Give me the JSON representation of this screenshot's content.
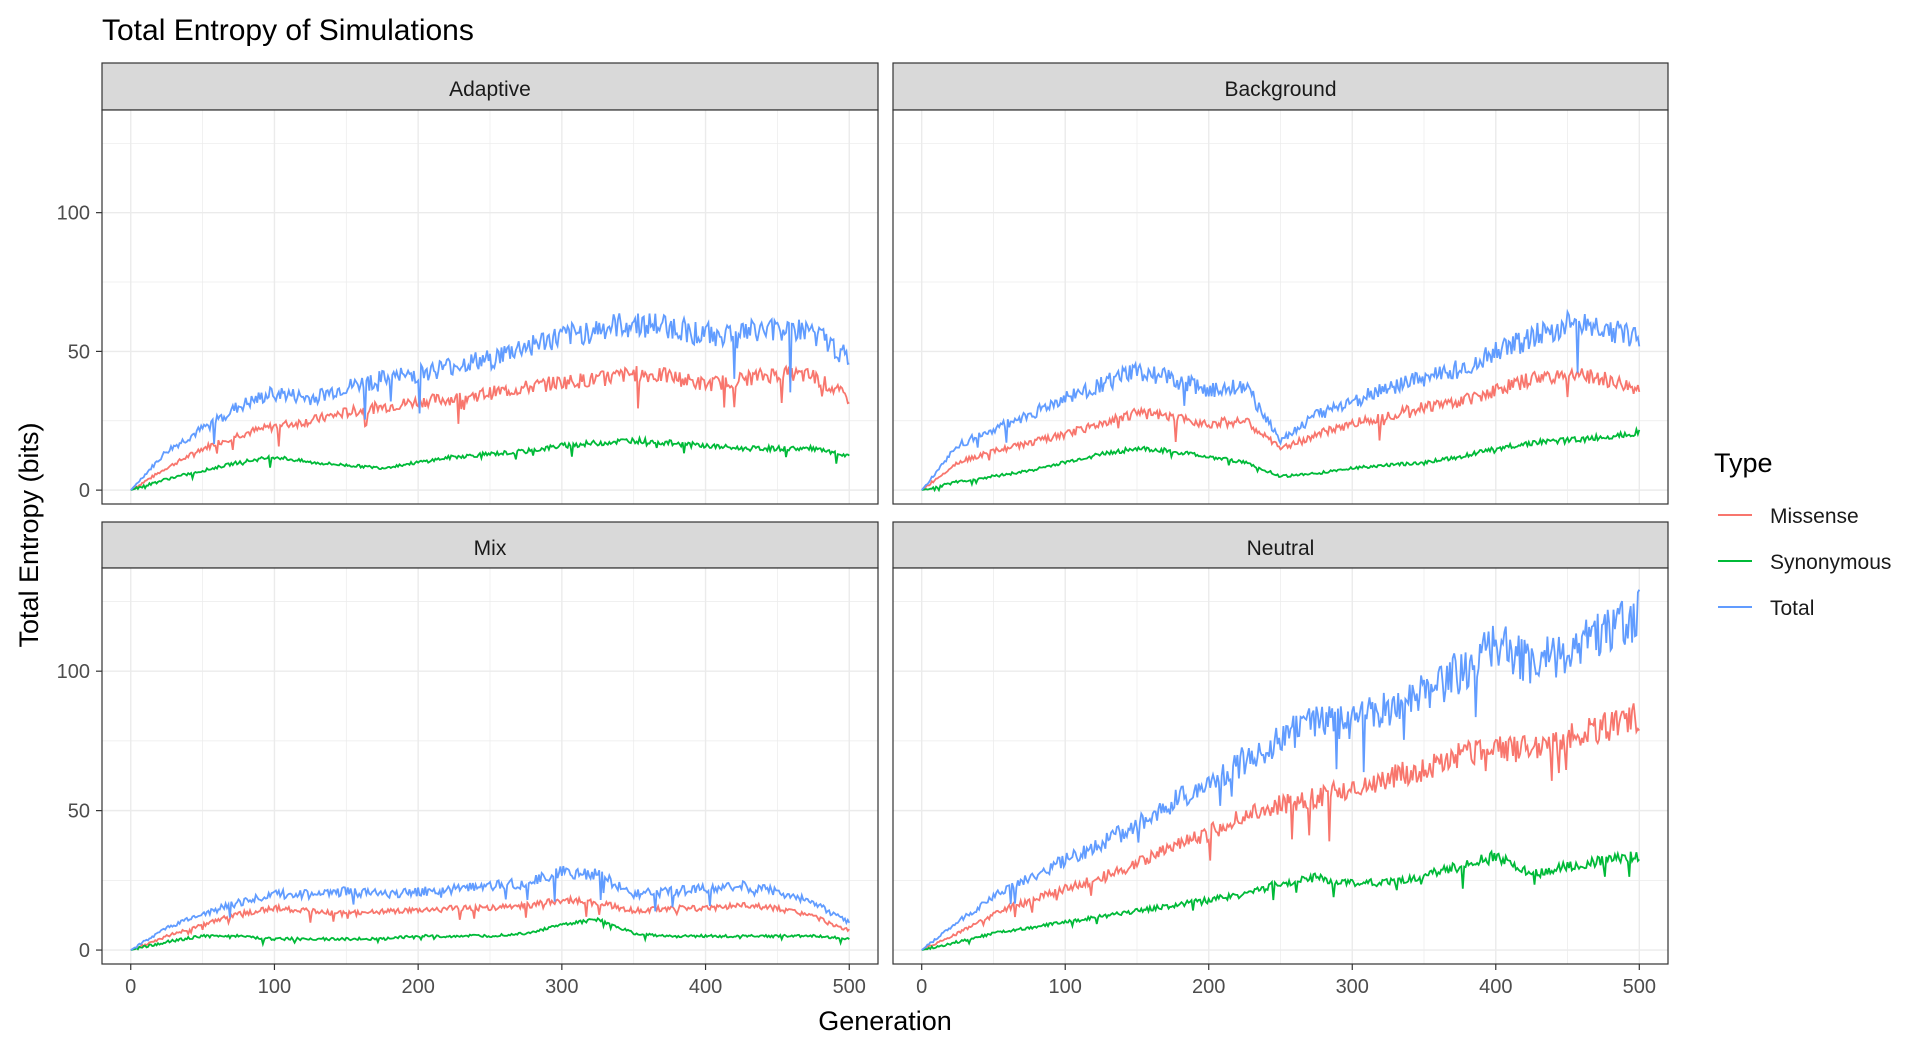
{
  "chart_data": {
    "type": "line",
    "title": "Total Entropy of Simulations",
    "xlabel": "Generation",
    "ylabel": "Total Entropy (bits)",
    "xlim": [
      -20,
      520
    ],
    "ylim": [
      -5,
      137
    ],
    "x_ticks": [
      0,
      100,
      200,
      300,
      400,
      500
    ],
    "y_ticks": [
      0,
      50,
      100
    ],
    "grid": true,
    "legend": {
      "title": "Type",
      "position": "right",
      "entries": [
        {
          "name": "Missense",
          "color": "#F8766D"
        },
        {
          "name": "Synonymous",
          "color": "#00BA38"
        },
        {
          "name": "Total",
          "color": "#619CFF"
        }
      ]
    },
    "panels": [
      {
        "name": "Adaptive",
        "series": [
          {
            "name": "Missense",
            "color": "#F8766D",
            "x": [
              0,
              25,
              50,
              75,
              100,
              125,
              150,
              175,
              200,
              225,
              250,
              275,
              300,
              325,
              350,
              375,
              400,
              425,
              450,
              475,
              500
            ],
            "y": [
              0,
              8,
              15,
              20,
              23,
              25,
              28,
              30,
              32,
              33,
              35,
              37,
              39,
              40,
              42,
              41,
              38,
              40,
              42,
              41,
              33
            ]
          },
          {
            "name": "Synonymous",
            "color": "#00BA38",
            "x": [
              0,
              25,
              50,
              75,
              100,
              125,
              150,
              175,
              200,
              225,
              250,
              275,
              300,
              325,
              350,
              375,
              400,
              425,
              450,
              475,
              500
            ],
            "y": [
              0,
              4,
              7,
              10,
              12,
              10,
              9,
              8,
              10,
              12,
              13,
              14,
              16,
              17,
              18,
              17,
              16,
              15,
              15,
              15,
              12
            ]
          },
          {
            "name": "Total",
            "color": "#619CFF",
            "x": [
              0,
              25,
              50,
              75,
              100,
              125,
              150,
              175,
              200,
              225,
              250,
              275,
              300,
              325,
              350,
              375,
              400,
              425,
              450,
              475,
              500
            ],
            "y": [
              0,
              14,
              22,
              30,
              35,
              33,
              37,
              40,
              42,
              45,
              47,
              52,
              55,
              58,
              60,
              59,
              56,
              57,
              58,
              57,
              47
            ]
          }
        ]
      },
      {
        "name": "Background",
        "series": [
          {
            "name": "Missense",
            "color": "#F8766D",
            "x": [
              0,
              25,
              50,
              75,
              100,
              125,
              150,
              175,
              200,
              225,
              250,
              275,
              300,
              325,
              350,
              375,
              400,
              425,
              450,
              475,
              500
            ],
            "y": [
              0,
              10,
              14,
              17,
              20,
              24,
              28,
              26,
              24,
              25,
              15,
              20,
              24,
              27,
              30,
              32,
              36,
              40,
              42,
              40,
              36
            ]
          },
          {
            "name": "Synonymous",
            "color": "#00BA38",
            "x": [
              0,
              25,
              50,
              75,
              100,
              125,
              150,
              175,
              200,
              225,
              250,
              275,
              300,
              325,
              350,
              375,
              400,
              425,
              450,
              475,
              500
            ],
            "y": [
              0,
              3,
              5,
              7,
              10,
              13,
              15,
              14,
              12,
              10,
              5,
              6,
              8,
              9,
              10,
              12,
              15,
              17,
              18,
              19,
              21
            ]
          },
          {
            "name": "Total",
            "color": "#619CFF",
            "x": [
              0,
              25,
              50,
              75,
              100,
              125,
              150,
              175,
              200,
              225,
              250,
              275,
              300,
              325,
              350,
              375,
              400,
              425,
              450,
              475,
              500
            ],
            "y": [
              0,
              16,
              22,
              27,
              33,
              38,
              43,
              40,
              36,
              38,
              18,
              27,
              32,
              37,
              40,
              44,
              50,
              55,
              60,
              58,
              55
            ]
          }
        ]
      },
      {
        "name": "Mix",
        "series": [
          {
            "name": "Missense",
            "color": "#F8766D",
            "x": [
              0,
              25,
              50,
              75,
              100,
              125,
              150,
              175,
              200,
              225,
              250,
              275,
              300,
              325,
              350,
              375,
              400,
              425,
              450,
              475,
              500
            ],
            "y": [
              0,
              5,
              9,
              13,
              15,
              14,
              13,
              14,
              14,
              15,
              15,
              16,
              18,
              17,
              14,
              15,
              15,
              16,
              15,
              12,
              7
            ]
          },
          {
            "name": "Synonymous",
            "color": "#00BA38",
            "x": [
              0,
              25,
              50,
              75,
              100,
              125,
              150,
              175,
              200,
              225,
              250,
              275,
              300,
              325,
              350,
              375,
              400,
              425,
              450,
              475,
              500
            ],
            "y": [
              0,
              3,
              5,
              5,
              4,
              4,
              4,
              4,
              5,
              5,
              5,
              6,
              9,
              11,
              6,
              5,
              5,
              5,
              5,
              5,
              4
            ]
          },
          {
            "name": "Total",
            "color": "#619CFF",
            "x": [
              0,
              25,
              50,
              75,
              100,
              125,
              150,
              175,
              200,
              225,
              250,
              275,
              300,
              325,
              350,
              375,
              400,
              425,
              450,
              475,
              500
            ],
            "y": [
              0,
              8,
              13,
              17,
              20,
              20,
              21,
              20,
              21,
              22,
              23,
              24,
              28,
              27,
              20,
              21,
              22,
              23,
              21,
              17,
              10
            ]
          }
        ]
      },
      {
        "name": "Neutral",
        "series": [
          {
            "name": "Missense",
            "color": "#F8766D",
            "x": [
              0,
              25,
              50,
              75,
              100,
              125,
              150,
              175,
              200,
              225,
              250,
              275,
              300,
              325,
              350,
              375,
              400,
              425,
              450,
              475,
              500
            ],
            "y": [
              0,
              6,
              13,
              18,
              22,
              26,
              31,
              37,
              42,
              48,
              52,
              55,
              58,
              62,
              65,
              70,
              72,
              72,
              76,
              80,
              84
            ]
          },
          {
            "name": "Synonymous",
            "color": "#00BA38",
            "x": [
              0,
              25,
              50,
              75,
              100,
              125,
              150,
              175,
              200,
              225,
              250,
              275,
              300,
              325,
              350,
              375,
              400,
              425,
              450,
              475,
              500
            ],
            "y": [
              0,
              3,
              6,
              8,
              10,
              12,
              14,
              16,
              18,
              20,
              24,
              26,
              24,
              24,
              27,
              30,
              34,
              27,
              30,
              32,
              34
            ]
          },
          {
            "name": "Total",
            "color": "#619CFF",
            "x": [
              0,
              25,
              50,
              75,
              100,
              125,
              150,
              175,
              200,
              225,
              250,
              275,
              300,
              325,
              350,
              375,
              400,
              425,
              450,
              475,
              500
            ],
            "y": [
              0,
              10,
              19,
              26,
              32,
              38,
              45,
              53,
              60,
              68,
              76,
              82,
              82,
              86,
              92,
              100,
              110,
              102,
              108,
              115,
              120
            ]
          }
        ]
      }
    ]
  }
}
